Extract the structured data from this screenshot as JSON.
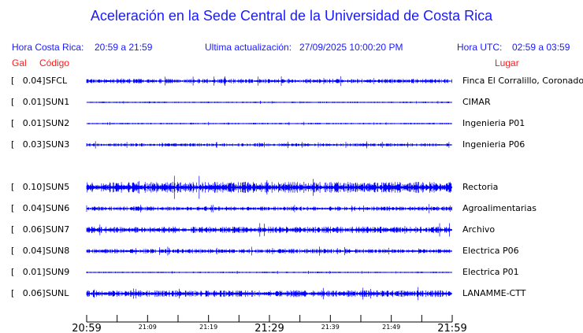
{
  "header": {
    "title": "Aceleración en la Sede Central de la Universidad de Costa Rica",
    "hora_cr_label": "Hora Costa Rica:",
    "hora_cr_value": "20:59 a 21:59",
    "update_label": "Ultima actualización:",
    "update_value": "27/09/2025 10:00:20 PM",
    "hora_utc_label": "Hora UTC:",
    "hora_utc_value": "02:59 a 03:59",
    "col_gal": "Gal",
    "col_codigo": "Código",
    "col_lugar": "Lugar"
  },
  "colors": {
    "trace": "#0000ff",
    "header": "#1a1aff",
    "column_headers": "#ff1a1a"
  },
  "chart_data": {
    "type": "line",
    "x_range": [
      "20:59",
      "21:59"
    ],
    "x_ticks": [
      "20:59",
      "21:09",
      "21:19",
      "21:29",
      "21:39",
      "21:49",
      "21:59"
    ],
    "stations": [
      {
        "gal": "[   0.04]",
        "code": "SFCL",
        "place": "Finca El Corralillo, Coronado",
        "peak_gal": 0.04
      },
      {
        "gal": "[   0.01]",
        "code": "SUN1",
        "place": "CIMAR",
        "peak_gal": 0.01
      },
      {
        "gal": "[   0.01]",
        "code": "SUN2",
        "place": "Ingenieria P01",
        "peak_gal": 0.01
      },
      {
        "gal": "[   0.03]",
        "code": "SUN3",
        "place": "Ingenieria P06",
        "peak_gal": 0.03
      },
      {
        "gal": "[   0.10]",
        "code": "SUN5",
        "place": "Rectoria",
        "peak_gal": 0.1
      },
      {
        "gal": "[   0.04]",
        "code": "SUN6",
        "place": "Agroalimentarias",
        "peak_gal": 0.04
      },
      {
        "gal": "[   0.06]",
        "code": "SUN7",
        "place": "Archivo",
        "peak_gal": 0.06
      },
      {
        "gal": "[   0.04]",
        "code": "SUN8",
        "place": "Electrica P06",
        "peak_gal": 0.04
      },
      {
        "gal": "[   0.01]",
        "code": "SUN9",
        "place": "Electrica P01",
        "peak_gal": 0.01
      },
      {
        "gal": "[   0.06]",
        "code": "SUNL",
        "place": "LANAMME-CTT",
        "peak_gal": 0.06
      }
    ]
  }
}
